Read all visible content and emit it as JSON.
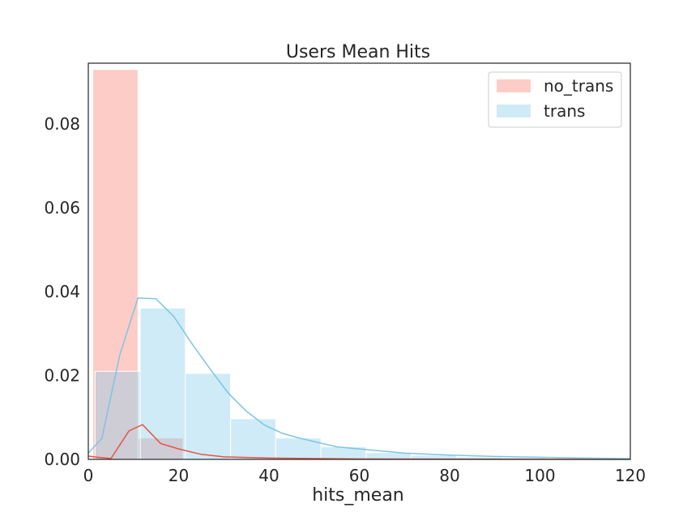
{
  "chart_data": {
    "type": "bar",
    "title": "Users Mean Hits",
    "xlabel": "hits_mean",
    "ylabel": "",
    "xlim": [
      0,
      120
    ],
    "ylim": [
      0,
      0.0945
    ],
    "grid": false,
    "legend_position": "top-right",
    "xticks": [
      "0",
      "20",
      "40",
      "60",
      "80",
      "100",
      "120"
    ],
    "yticks": [
      "0.00",
      "0.02",
      "0.04",
      "0.06",
      "0.08"
    ],
    "series": [
      {
        "name": "no_trans",
        "color": "#fa8072",
        "line_color": "#e8533f",
        "bins": [
          {
            "x0": 1,
            "x1": 11,
            "value": 0.093
          },
          {
            "x0": 11,
            "x1": 21,
            "value": 0.0051
          }
        ],
        "kde": {
          "x": [
            0,
            2,
            5,
            9,
            12,
            16,
            20,
            25,
            30,
            40,
            60,
            120
          ],
          "y": [
            0.0008,
            0.0005,
            0.0002,
            0.0068,
            0.0083,
            0.0038,
            0.0025,
            0.0012,
            0.0006,
            0.0003,
            0.0001,
            0.0
          ]
        }
      },
      {
        "name": "trans",
        "color": "#87ceeb",
        "line_color": "#7fc4e3",
        "bins": [
          {
            "x0": 1.5,
            "x1": 11.5,
            "value": 0.021
          },
          {
            "x0": 11.5,
            "x1": 21.5,
            "value": 0.0361
          },
          {
            "x0": 21.5,
            "x1": 31.5,
            "value": 0.0205
          },
          {
            "x0": 31.5,
            "x1": 41.5,
            "value": 0.0097
          },
          {
            "x0": 41.5,
            "x1": 51.5,
            "value": 0.0051
          },
          {
            "x0": 51.5,
            "x1": 61.5,
            "value": 0.003
          },
          {
            "x0": 61.5,
            "x1": 71.5,
            "value": 0.0016
          },
          {
            "x0": 71.5,
            "x1": 81.5,
            "value": 0.001
          },
          {
            "x0": 81.5,
            "x1": 91.5,
            "value": 0.0006
          },
          {
            "x0": 91.5,
            "x1": 101.5,
            "value": 0.0004
          },
          {
            "x0": 101.5,
            "x1": 111.5,
            "value": 0.0002
          },
          {
            "x0": 111.5,
            "x1": 121.5,
            "value": 0.0001
          }
        ],
        "kde": {
          "x": [
            0,
            3,
            7,
            11,
            15,
            19,
            23,
            27,
            31,
            35,
            39,
            43,
            47,
            51,
            55,
            60,
            65,
            70,
            80,
            90,
            100,
            110,
            120
          ],
          "y": [
            0.0015,
            0.005,
            0.025,
            0.0385,
            0.0383,
            0.034,
            0.0275,
            0.0215,
            0.0158,
            0.0115,
            0.0082,
            0.0062,
            0.005,
            0.004,
            0.003,
            0.0025,
            0.002,
            0.0015,
            0.001,
            0.0007,
            0.0005,
            0.0003,
            0.0002
          ]
        }
      }
    ]
  }
}
